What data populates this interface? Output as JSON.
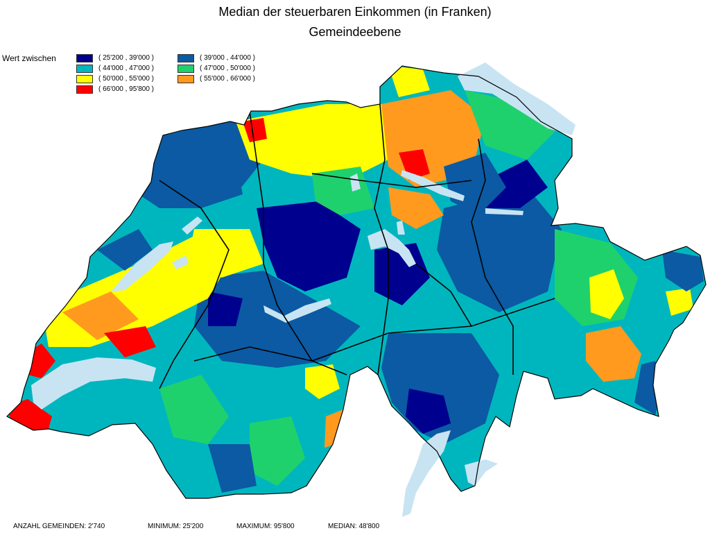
{
  "title": "Median der steuerbaren Einkommen (in Franken)",
  "subtitle": "Gemeindeebene",
  "legend": {
    "caption": "Wert zwischen",
    "items": [
      {
        "label": "( 25'200 , 39'000 )",
        "color": "#00008f"
      },
      {
        "label": "( 39'000 , 44'000 )",
        "color": "#0b5aa3"
      },
      {
        "label": "( 44'000 , 47'000 )",
        "color": "#00b6be"
      },
      {
        "label": "( 47'000 , 50'000 )",
        "color": "#1fd16d"
      },
      {
        "label": "( 50'000 , 55'000 )",
        "color": "#ffff00"
      },
      {
        "label": "( 55'000 , 66'000 )",
        "color": "#ff9a1f"
      },
      {
        "label": "( 66'000 , 95'800 )",
        "color": "#ff0000"
      }
    ]
  },
  "stats": {
    "count": "ANZAHL GEMEINDEN: 2'740",
    "minimum": "MINIMUM: 25'200",
    "maximum": "MAXIMUM: 95'800",
    "median": "MEDIAN: 48'800"
  },
  "map": {
    "lake_color": "#c8e4f2",
    "border_color": "#000000"
  }
}
